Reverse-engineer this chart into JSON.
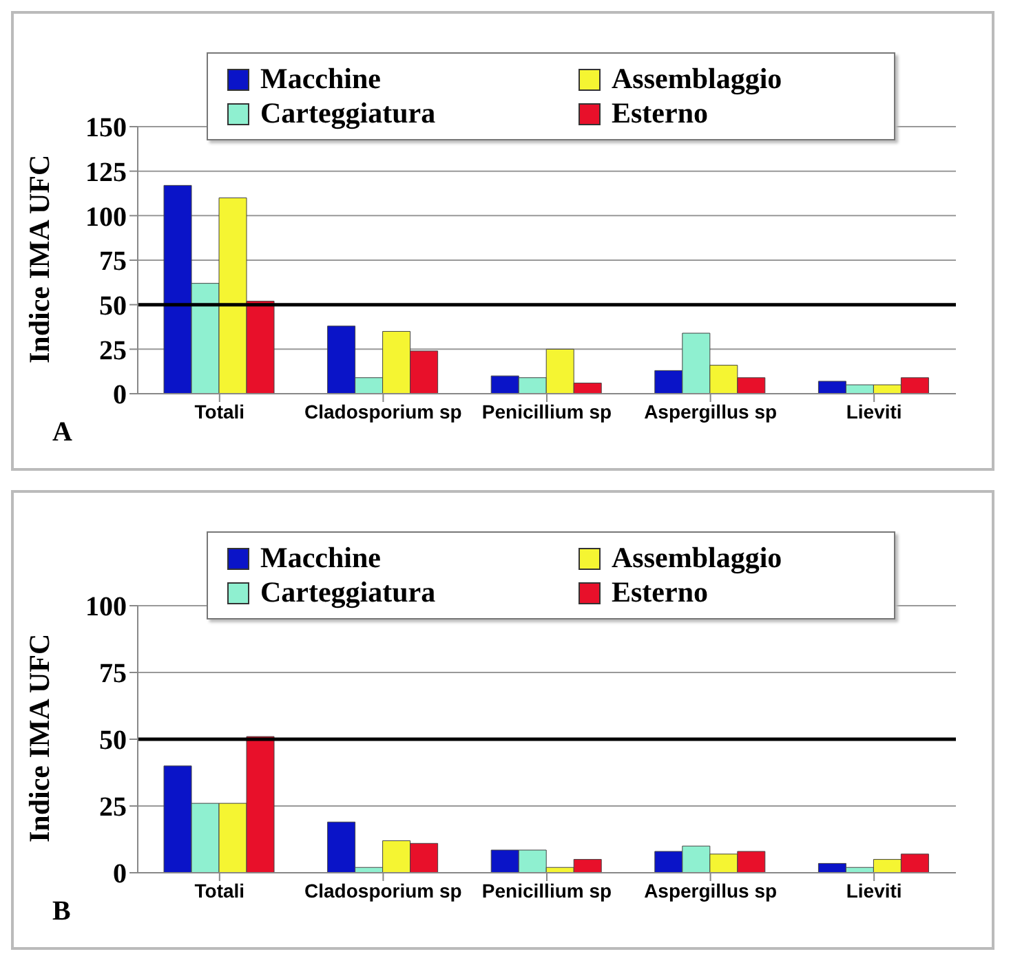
{
  "chart_data": [
    {
      "type": "bar",
      "ylabel": "Indice IMA UFC",
      "categories": [
        "Totali",
        "Cladosporium sp",
        "Penicillium sp",
        "Aspergillus sp",
        "Lieviti"
      ],
      "series": [
        {
          "name": "Macchine",
          "color": "#0a14c8",
          "values": [
            117,
            38,
            10,
            13,
            7
          ]
        },
        {
          "name": "Carteggiatura",
          "color": "#8ff0d0",
          "values": [
            62,
            9,
            9,
            34,
            5
          ]
        },
        {
          "name": "Assemblaggio",
          "color": "#f5f532",
          "values": [
            110,
            35,
            25,
            16,
            5
          ]
        },
        {
          "name": "Esterno",
          "color": "#e8102a",
          "values": [
            52,
            24,
            6,
            9,
            9
          ]
        }
      ],
      "ylim": [
        0,
        150
      ],
      "yticks": [
        0,
        25,
        50,
        75,
        100,
        125,
        150
      ],
      "grid": "y",
      "legend": "top",
      "ref_lines": [
        {
          "axis": "y",
          "value": 50,
          "color": "#000000"
        }
      ],
      "annotations": [
        "A"
      ]
    },
    {
      "type": "bar",
      "ylabel": "Indice IMA UFC",
      "categories": [
        "Totali",
        "Cladosporium sp",
        "Penicillium sp",
        "Aspergillus sp",
        "Lieviti"
      ],
      "series": [
        {
          "name": "Macchine",
          "color": "#0a14c8",
          "values": [
            40,
            19,
            8.5,
            8,
            3.5
          ]
        },
        {
          "name": "Carteggiatura",
          "color": "#8ff0d0",
          "values": [
            26,
            2,
            8.5,
            10,
            2
          ]
        },
        {
          "name": "Assemblaggio",
          "color": "#f5f532",
          "values": [
            26,
            12,
            2,
            7,
            5
          ]
        },
        {
          "name": "Esterno",
          "color": "#e8102a",
          "values": [
            51,
            11,
            5,
            8,
            7
          ]
        }
      ],
      "ylim": [
        0,
        100
      ],
      "yticks": [
        0,
        25,
        50,
        75,
        100
      ],
      "grid": "y",
      "legend": "top",
      "ref_lines": [
        {
          "axis": "y",
          "value": 50,
          "color": "#000000"
        }
      ],
      "annotations": [
        "B"
      ]
    }
  ]
}
